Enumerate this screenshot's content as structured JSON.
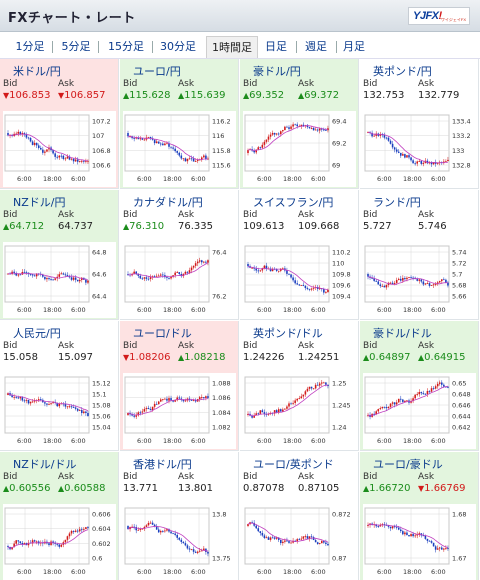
{
  "header": {
    "title": "FXチャート・レート",
    "logo_main": "YJFX",
    "logo_accent": "!",
    "logo_sub": "ワイジェイFX"
  },
  "tabs": [
    {
      "label": "1分足",
      "active": false
    },
    {
      "label": "5分足",
      "active": false
    },
    {
      "label": "15分足",
      "active": false
    },
    {
      "label": "30分足",
      "active": false
    },
    {
      "label": "1時間足",
      "active": true
    },
    {
      "label": "日足",
      "active": false
    },
    {
      "label": "週足",
      "active": false
    },
    {
      "label": "月足",
      "active": false
    }
  ],
  "labels": {
    "bid": "Bid",
    "ask": "Ask"
  },
  "x_ticks": [
    "6:00",
    "18:00",
    "6:00"
  ],
  "pairs": [
    {
      "name": "米ドル/円",
      "flag": "us",
      "tint": "down",
      "bid": "106.853",
      "ask": "106.857",
      "bid_dir": "down",
      "ask_dir": "down",
      "ticks": [
        "107.2",
        "107",
        "106.8",
        "106.6"
      ],
      "trend": "down"
    },
    {
      "name": "ユーロ/円",
      "flag": "eu",
      "tint": "up",
      "bid": "115.628",
      "ask": "115.639",
      "bid_dir": "up",
      "ask_dir": "up",
      "ticks": [
        "116.2",
        "116",
        "115.8",
        "115.6"
      ],
      "trend": "down"
    },
    {
      "name": "豪ドル/円",
      "flag": "au",
      "tint": "up",
      "bid": "69.352",
      "ask": "69.372",
      "bid_dir": "up",
      "ask_dir": "up",
      "ticks": [
        "69.4",
        "69.2",
        "69"
      ],
      "trend": "up"
    },
    {
      "name": "英ポンド/円",
      "flag": "gb",
      "tint": "plain",
      "bid": "132.753",
      "ask": "132.779",
      "bid_dir": "none",
      "ask_dir": "none",
      "ticks": [
        "133.4",
        "133.2",
        "133",
        "132.8"
      ],
      "trend": "down"
    },
    {
      "name": "NZドル/円",
      "flag": "nz",
      "tint": "up",
      "bid": "64.712",
      "ask": "64.737",
      "bid_dir": "up",
      "ask_dir": "none",
      "ticks": [
        "64.8",
        "64.6",
        "64.4"
      ],
      "trend": "flat"
    },
    {
      "name": "カナダドル/円",
      "flag": "ca",
      "tint": "plain",
      "bid": "76.310",
      "ask": "76.335",
      "bid_dir": "up",
      "ask_dir": "none",
      "ticks": [
        "76.4",
        "76.2"
      ],
      "trend": "flat"
    },
    {
      "name": "スイスフラン/円",
      "flag": "ch",
      "tint": "plain",
      "bid": "109.613",
      "ask": "109.668",
      "bid_dir": "none",
      "ask_dir": "none",
      "ticks": [
        "110.2",
        "110",
        "109.8",
        "109.6",
        "109.4"
      ],
      "trend": "down"
    },
    {
      "name": "ランド/円",
      "flag": "za",
      "tint": "plain",
      "bid": "5.727",
      "ask": "5.746",
      "bid_dir": "none",
      "ask_dir": "none",
      "ticks": [
        "5.74",
        "5.72",
        "5.7",
        "5.68",
        "5.66"
      ],
      "trend": "flat"
    },
    {
      "name": "人民元/円",
      "flag": "cn",
      "tint": "plain",
      "bid": "15.058",
      "ask": "15.097",
      "bid_dir": "none",
      "ask_dir": "none",
      "ticks": [
        "15.12",
        "15.1",
        "15.08",
        "15.06",
        "15.04"
      ],
      "trend": "down"
    },
    {
      "name": "ユーロ/ドル",
      "flag": "eu",
      "tint": "down",
      "bid": "1.08206",
      "ask": "1.08218",
      "bid_dir": "down",
      "ask_dir": "up",
      "ticks": [
        "1.088",
        "1.086",
        "1.084",
        "1.082"
      ],
      "trend": "up"
    },
    {
      "name": "英ポンド/ドル",
      "flag": "gb",
      "tint": "plain",
      "bid": "1.24226",
      "ask": "1.24251",
      "bid_dir": "none",
      "ask_dir": "none",
      "ticks": [
        "1.25",
        "1.245",
        "1.24"
      ],
      "trend": "up"
    },
    {
      "name": "豪ドル/ドル",
      "flag": "au",
      "tint": "up",
      "bid": "0.64897",
      "ask": "0.64915",
      "bid_dir": "up",
      "ask_dir": "up",
      "ticks": [
        "0.65",
        "0.648",
        "0.646",
        "0.644",
        "0.642"
      ],
      "trend": "up"
    },
    {
      "name": "NZドル/ドル",
      "flag": "nz",
      "tint": "up",
      "bid": "0.60556",
      "ask": "0.60588",
      "bid_dir": "up",
      "ask_dir": "up",
      "ticks": [
        "0.606",
        "0.604",
        "0.602",
        "0.6"
      ],
      "trend": "up"
    },
    {
      "name": "香港ドル/円",
      "flag": "hk",
      "tint": "plain",
      "bid": "13.771",
      "ask": "13.801",
      "bid_dir": "none",
      "ask_dir": "none",
      "ticks": [
        "13.8",
        "13.75"
      ],
      "trend": "down"
    },
    {
      "name": "ユーロ/英ポンド",
      "flag": "eu",
      "tint": "plain",
      "bid": "0.87078",
      "ask": "0.87105",
      "bid_dir": "none",
      "ask_dir": "none",
      "ticks": [
        "0.872",
        "0.87"
      ],
      "trend": "down"
    },
    {
      "name": "ユーロ/豪ドル",
      "flag": "eu",
      "tint": "up",
      "bid": "1.66720",
      "ask": "1.66769",
      "bid_dir": "up",
      "ask_dir": "down",
      "ticks": [
        "1.68",
        "1.67"
      ],
      "trend": "down"
    }
  ],
  "colors": {
    "up_candle": "#d21a1a",
    "down_candle": "#1b3fbf",
    "ma_line": "#c040c0",
    "grid": "#d8d8d8"
  }
}
